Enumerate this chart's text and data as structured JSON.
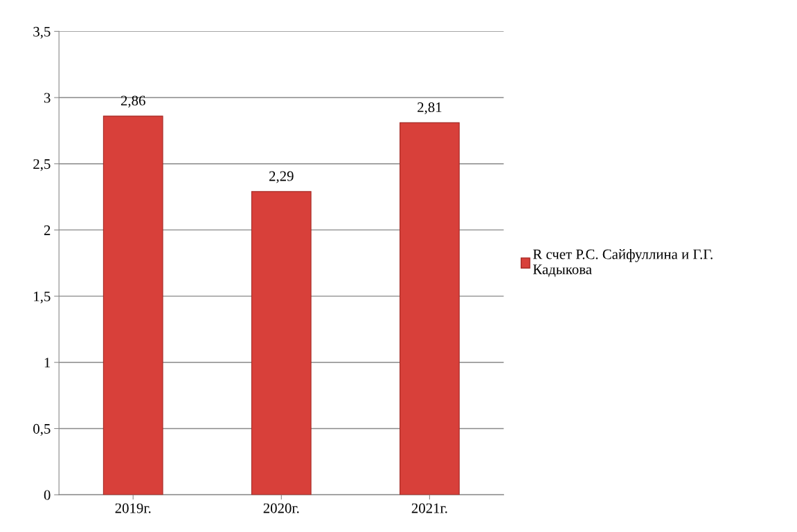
{
  "chart_data": {
    "type": "bar",
    "categories": [
      "2019г.",
      "2020г.",
      "2021г."
    ],
    "series": [
      {
        "name": "R счет Р.С. Сайфуллина и Г.Г. Кадыкова",
        "color": "#d8403a",
        "values": [
          2.86,
          2.29,
          2.81
        ],
        "value_labels": [
          "2,86",
          "2,29",
          "2,81"
        ]
      }
    ],
    "ylim": [
      0,
      3.5
    ],
    "yticks": [
      0,
      {
        "value": 0.5,
        "label": "0,5"
      },
      1,
      {
        "value": 1.5,
        "label": "1,5"
      },
      2,
      {
        "value": 2.5,
        "label": "2,5"
      },
      3,
      {
        "value": 3.5,
        "label": "3,5"
      }
    ],
    "grid": "y",
    "legend": "right"
  }
}
